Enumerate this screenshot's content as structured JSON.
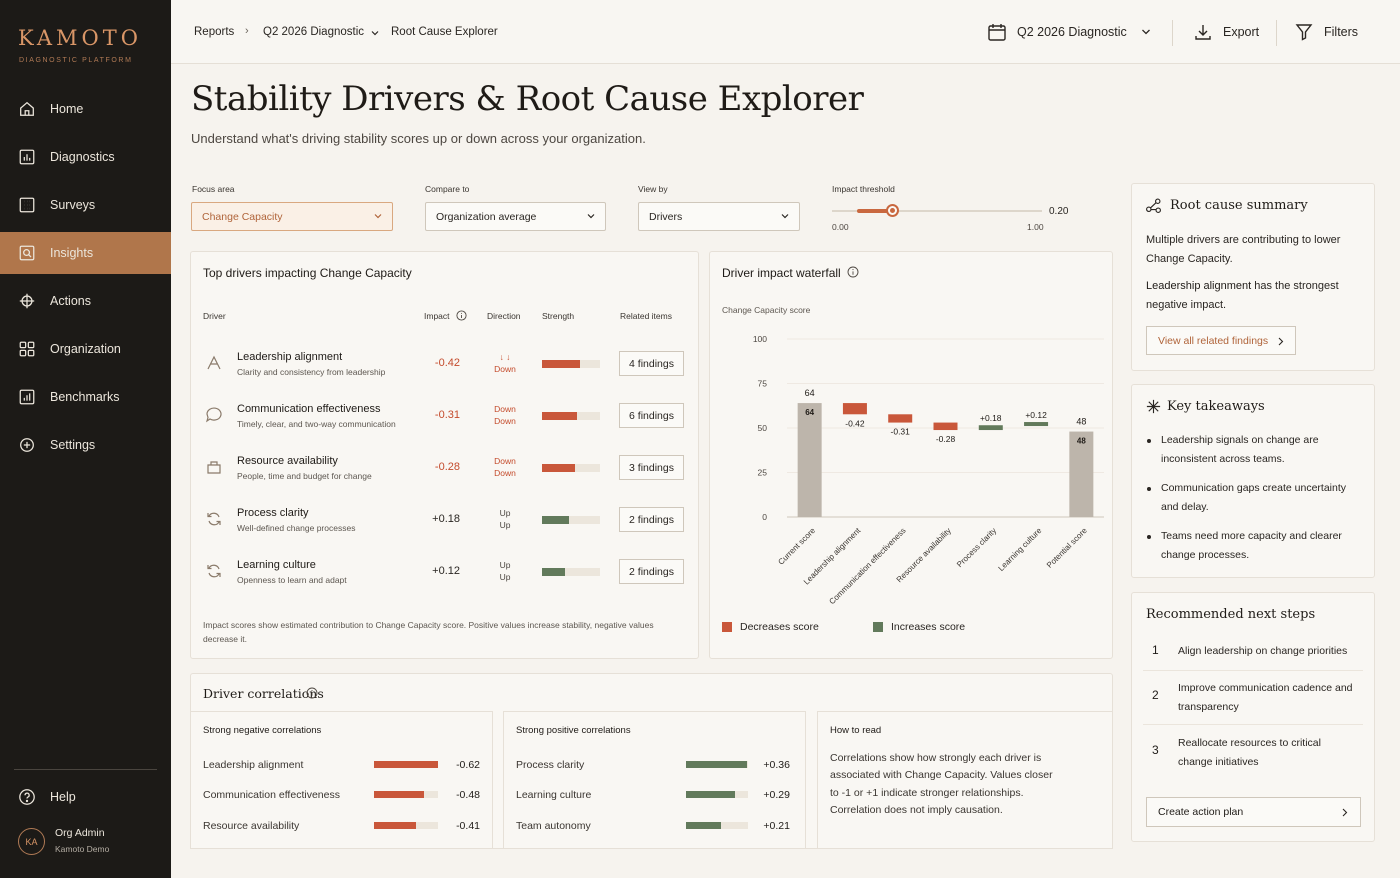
{
  "app": {
    "logo": "KAMOTO",
    "logo_sub": "DIAGNOSTIC PLATFORM"
  },
  "sidebar": {
    "items": [
      {
        "label": "Home",
        "icon": "home-icon"
      },
      {
        "label": "Diagnostics",
        "icon": "chart-icon"
      },
      {
        "label": "Surveys",
        "icon": "grid-icon"
      },
      {
        "label": "Insights",
        "icon": "insights-icon",
        "active": true
      },
      {
        "label": "Actions",
        "icon": "target-icon"
      },
      {
        "label": "Organization",
        "icon": "org-icon"
      },
      {
        "label": "Benchmarks",
        "icon": "benchmark-icon"
      },
      {
        "label": "Settings",
        "icon": "gear-icon"
      }
    ],
    "help": "Help",
    "user": {
      "initials": "KA",
      "name": "Org Admin",
      "org": "Kamoto Demo"
    }
  },
  "topbar": {
    "breadcrumb": [
      "Reports",
      "Q2 2026 Diagnostic",
      "Root Cause Explorer"
    ],
    "period": "Q2 2026 Diagnostic",
    "export": "Export",
    "filters": "Filters"
  },
  "page": {
    "title": "Stability Drivers & Root Cause Explorer",
    "subtitle": "Understand what's driving stability scores up or down across your organization."
  },
  "controls": {
    "focus_label": "Focus area",
    "focus_value": "Change Capacity",
    "compare_label": "Compare to",
    "compare_value": "Organization average",
    "view_label": "View by",
    "view_value": "Drivers",
    "threshold_label": "Impact threshold",
    "threshold_value": "0.20",
    "threshold_min": "0.00",
    "threshold_max": "1.00",
    "threshold_level": 0.2
  },
  "drivers_card": {
    "title": "Top drivers impacting Change Capacity",
    "headers": {
      "driver": "Driver",
      "impact": "Impact",
      "direction": "Direction",
      "strength": "Strength",
      "related": "Related items"
    },
    "rows": [
      {
        "name": "Leadership alignment",
        "desc": "Clarity and consistency from leadership",
        "impact": "-0.42",
        "dir_top": "↓ ↓",
        "dir_bottom": "Down",
        "strength": 0.65,
        "findings": "4 findings",
        "sign": "neg"
      },
      {
        "name": "Communication effectiveness",
        "desc": "Timely, clear, and two-way communication",
        "impact": "-0.31",
        "dir_top": "Down",
        "dir_bottom": "Down",
        "strength": 0.6,
        "findings": "6 findings",
        "sign": "neg"
      },
      {
        "name": "Resource availability",
        "desc": "People, time and budget for change",
        "impact": "-0.28",
        "dir_top": "Down",
        "dir_bottom": "Down",
        "strength": 0.57,
        "findings": "3 findings",
        "sign": "neg"
      },
      {
        "name": "Process clarity",
        "desc": "Well-defined change processes",
        "impact": "+0.18",
        "dir_top": "Up",
        "dir_bottom": "Up",
        "strength": 0.47,
        "findings": "2 findings",
        "sign": "pos"
      },
      {
        "name": "Learning culture",
        "desc": "Openness to learn and adapt",
        "impact": "+0.12",
        "dir_top": "Up",
        "dir_bottom": "Up",
        "strength": 0.4,
        "findings": "2 findings",
        "sign": "pos"
      }
    ],
    "note": "Impact scores show estimated contribution to Change Capacity score. Positive values increase stability, negative values decrease it."
  },
  "waterfall_card": {
    "title": "Driver impact waterfall",
    "legend_dec": "Decreases score",
    "legend_inc": "Increases score"
  },
  "chart_data": {
    "type": "bar",
    "subtitle": "Change Capacity score",
    "categories": [
      "Current score",
      "Leadership alignment",
      "Communication effectiveness",
      "Resource availability",
      "Process clarity",
      "Learning culture",
      "Potential score"
    ],
    "values": [
      64,
      -0.42,
      -0.31,
      -0.28,
      0.18,
      0.12,
      48
    ],
    "value_labels": [
      "64",
      "-0.42",
      "-0.31",
      "-0.28",
      "+0.18",
      "+0.12",
      "48"
    ],
    "ylim": [
      0,
      100
    ],
    "yticks": [
      0,
      25,
      50,
      75,
      100
    ],
    "colors": {
      "decrease": "#c9573a",
      "increase": "#627a5b",
      "total": "#bdb5ab"
    }
  },
  "correlations": {
    "title": "Driver correlations",
    "negative": {
      "title": "Strong negative correlations",
      "items": [
        {
          "label": "Leadership alignment",
          "value": "-0.62",
          "level": 0.62
        },
        {
          "label": "Communication effectiveness",
          "value": "-0.48",
          "level": 0.48
        },
        {
          "label": "Resource availability",
          "value": "-0.41",
          "level": 0.41
        }
      ]
    },
    "positive": {
      "title": "Strong positive correlations",
      "items": [
        {
          "label": "Process clarity",
          "value": "+0.36",
          "level": 0.36
        },
        {
          "label": "Learning culture",
          "value": "+0.29",
          "level": 0.29
        },
        {
          "label": "Team autonomy",
          "value": "+0.21",
          "level": 0.21
        }
      ]
    },
    "howto": {
      "title": "How to read",
      "text": "Correlations show how strongly each driver is associated with Change Capacity. Values closer to -1 or +1 indicate stronger relationships. Correlation does not imply causation."
    }
  },
  "summary": {
    "title": "Root cause summary",
    "line1": "Multiple drivers are contributing to lower Change Capacity.",
    "strong": "Leadership alignment",
    "line2": " has the strongest negative impact.",
    "button": "View all related findings"
  },
  "takeaways": {
    "title": "Key takeaways",
    "items": [
      "Leadership signals on change are inconsistent across teams.",
      "Communication gaps create uncertainty and delay.",
      "Teams need more capacity and clearer change processes."
    ]
  },
  "next_steps": {
    "title": "Recommended next steps",
    "items": [
      {
        "num": "1",
        "text": "Align leadership on change priorities"
      },
      {
        "num": "2",
        "text": "Improve communication cadence and transparency"
      },
      {
        "num": "3",
        "text": "Reallocate resources to critical change initiatives"
      }
    ],
    "button": "Create action plan"
  },
  "colors": {
    "accent": "#b0764b",
    "negative": "#c9573a",
    "positive": "#627a5b",
    "sidebar": "#1c1a17"
  }
}
